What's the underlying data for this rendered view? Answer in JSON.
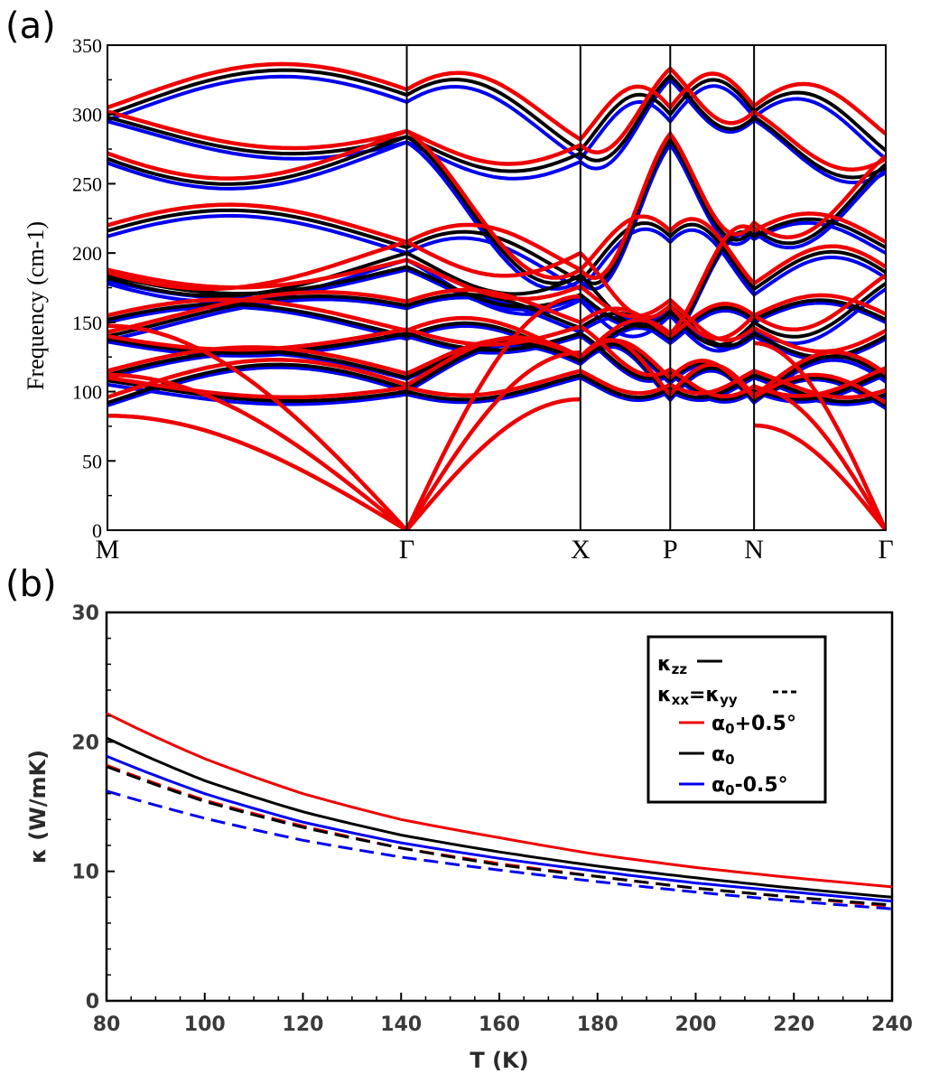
{
  "panel_labels": {
    "a": "(a)",
    "b": "(b)"
  },
  "chart_data": [
    {
      "type": "line",
      "title": "",
      "xlabel": "",
      "ylabel": "Frequency (cm-1)",
      "ylim": [
        0,
        350
      ],
      "yticks": [
        0,
        50,
        100,
        150,
        200,
        250,
        300,
        350
      ],
      "x_path": [
        "M",
        "Γ",
        "X",
        "P",
        "N",
        "Γ"
      ],
      "x_path_positions": [
        0,
        1,
        1.58,
        1.88,
        2.16,
        2.6
      ],
      "series": [
        {
          "name": "α0-0.5°",
          "color": "#0000ee",
          "bands": [
            [
              110,
              109,
              120,
              106,
              93,
              88
            ],
            [
              136,
              140,
              140,
              112,
              100,
              112
            ],
            [
              90,
              100,
              120,
              94,
              92,
              107
            ],
            [
              178,
              195,
              166,
              155,
              145,
              174
            ],
            [
              137,
              160,
              143,
              135,
              150,
              150
            ],
            [
              180,
              188,
              168,
              160,
              140,
              138
            ],
            [
              296,
              309,
              268,
              295,
              298,
              268
            ],
            [
              295,
              280,
              266,
              325,
              296,
              258
            ],
            [
              212,
              200,
              174,
              208,
              170,
              182
            ],
            [
              265,
              280,
              180,
              278,
              215,
              260
            ],
            [
              150,
              138,
              120,
              136,
              210,
              200
            ],
            [
              105,
              98,
              110,
              100,
              110,
              96
            ]
          ]
        },
        {
          "name": "α0",
          "color": "#000000",
          "bands": [
            [
              112,
              110,
              122,
              108,
              94,
              90
            ],
            [
              138,
              142,
              142,
              114,
              102,
              114
            ],
            [
              92,
              102,
              122,
              96,
              94,
              110
            ],
            [
              182,
              200,
              184,
              158,
              150,
              178
            ],
            [
              140,
              162,
              146,
              138,
              152,
              152
            ],
            [
              184,
              190,
              170,
              162,
              142,
              140
            ],
            [
              300,
              314,
              274,
              300,
              302,
              274
            ],
            [
              298,
              284,
              272,
              328,
              298,
              262
            ],
            [
              216,
              204,
              180,
              212,
              174,
              186
            ],
            [
              268,
              284,
              184,
              282,
              218,
              264
            ],
            [
              152,
              140,
              122,
              138,
              212,
              204
            ],
            [
              108,
              100,
              112,
              102,
              112,
              98
            ]
          ]
        },
        {
          "name": "α0+0.5°",
          "color": "#ee0000",
          "bands": [
            [
              115,
              113,
              125,
              110,
              96,
              92
            ],
            [
              140,
              145,
              147,
              116,
              104,
              117
            ],
            [
              96,
              105,
              125,
              98,
              97,
              113
            ],
            [
              186,
              208,
              200,
              162,
              155,
              184
            ],
            [
              143,
              165,
              150,
              140,
              155,
              156
            ],
            [
              188,
              195,
              176,
              166,
              146,
              144
            ],
            [
              305,
              318,
              282,
              305,
              306,
              286
            ],
            [
              302,
              288,
              278,
              333,
              302,
              268
            ],
            [
              220,
              208,
              188,
              216,
              178,
              190
            ],
            [
              272,
              288,
              188,
              286,
              222,
              270
            ],
            [
              155,
              144,
              125,
              142,
              216,
              208
            ],
            [
              110,
              103,
              115,
              105,
              115,
              101
            ]
          ]
        }
      ],
      "acoustic_bands": "three acoustic branches per series rising from 0 at Γ"
    },
    {
      "type": "line",
      "title": "",
      "xlabel": "T (K)",
      "ylabel": "κ (W/mK)",
      "xlim": [
        80,
        240
      ],
      "ylim": [
        0,
        30
      ],
      "xticks": [
        80,
        100,
        120,
        140,
        160,
        180,
        200,
        220,
        240
      ],
      "yticks": [
        0,
        10,
        20,
        30
      ],
      "x": [
        80,
        100,
        120,
        140,
        160,
        180,
        200,
        220,
        240
      ],
      "series": [
        {
          "name": "α0+0.5° κzz",
          "color": "#ee0000",
          "dash": false,
          "values": [
            22.2,
            18.7,
            16.0,
            14.0,
            12.6,
            11.3,
            10.3,
            9.5,
            8.8
          ]
        },
        {
          "name": "α0 κzz",
          "color": "#000000",
          "dash": false,
          "values": [
            20.3,
            17.0,
            14.6,
            12.8,
            11.5,
            10.4,
            9.5,
            8.7,
            8.0
          ]
        },
        {
          "name": "α0-0.5° κzz",
          "color": "#0000ee",
          "dash": false,
          "values": [
            18.9,
            16.0,
            13.8,
            12.2,
            11.0,
            10.0,
            9.1,
            8.4,
            7.7
          ]
        },
        {
          "name": "α0+0.5° κxx=κyy",
          "color": "#ee0000",
          "dash": true,
          "values": [
            18.2,
            15.5,
            13.5,
            11.8,
            10.6,
            9.6,
            8.7,
            8.0,
            7.3
          ]
        },
        {
          "name": "α0 κxx=κyy",
          "color": "#000000",
          "dash": true,
          "values": [
            18.1,
            15.4,
            13.4,
            11.8,
            10.5,
            9.6,
            8.7,
            8.0,
            7.4
          ]
        },
        {
          "name": "α0-0.5° κxx=κyy",
          "color": "#0000ee",
          "dash": true,
          "values": [
            16.2,
            14.1,
            12.4,
            11.1,
            10.1,
            9.2,
            8.4,
            7.7,
            7.1
          ]
        }
      ],
      "legend": {
        "placement": "top-right",
        "entries": [
          {
            "label": "κzz",
            "sub": "zz",
            "base": "κ",
            "style": "solid",
            "color": "#000000"
          },
          {
            "label": "κxx=κyy",
            "style": "dashed",
            "color": "#000000"
          },
          {
            "label": "α0+0.5°",
            "color": "#ee0000"
          },
          {
            "label": "α0",
            "color": "#000000"
          },
          {
            "label": "α0-0.5°",
            "color": "#0000ee"
          }
        ]
      }
    }
  ]
}
